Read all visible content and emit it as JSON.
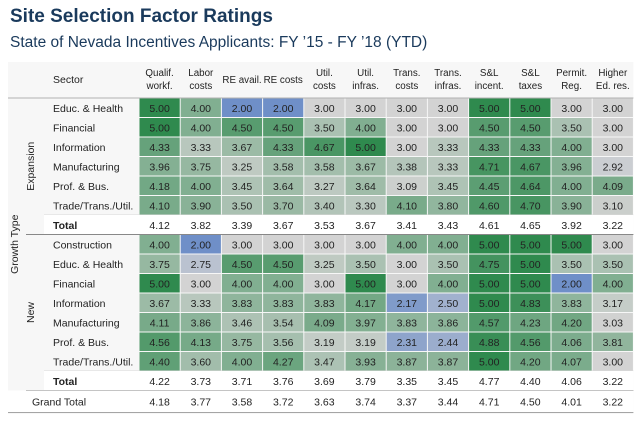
{
  "title": "Site Selection Factor Ratings",
  "subtitle": "State of Nevada Incentives Applicants:  FY ’15 - FY ’18 (YTD)",
  "chart_data": {
    "type": "heatmap",
    "row_axis_label": "Growth Type",
    "sector_header": "Sector",
    "columns": [
      [
        "Qualif.",
        "workf."
      ],
      [
        "Labor",
        "costs"
      ],
      [
        "RE avail."
      ],
      [
        "RE costs"
      ],
      [
        "Util.",
        "costs"
      ],
      [
        "Util.",
        "infras."
      ],
      [
        "Trans.",
        "costs"
      ],
      [
        "Trans.",
        "infras."
      ],
      [
        "S&L",
        "incent."
      ],
      [
        "S&L",
        "taxes"
      ],
      [
        "Permit.",
        "Reg."
      ],
      [
        "Higher",
        "Ed. res."
      ]
    ],
    "groups": [
      {
        "name": "Expansion",
        "rows": [
          {
            "sector": "Educ. & Health",
            "values": [
              "5.00",
              "4.00",
              "2.00",
              "2.00",
              "3.00",
              "3.00",
              "3.00",
              "3.00",
              "5.00",
              "5.00",
              "3.00",
              "3.00"
            ]
          },
          {
            "sector": "Financial",
            "values": [
              "5.00",
              "4.00",
              "4.50",
              "4.50",
              "3.50",
              "4.00",
              "3.00",
              "3.00",
              "4.50",
              "4.50",
              "3.50",
              "3.00"
            ]
          },
          {
            "sector": "Information",
            "values": [
              "4.33",
              "3.33",
              "3.67",
              "4.33",
              "4.67",
              "5.00",
              "3.00",
              "3.33",
              "4.33",
              "4.33",
              "4.00",
              "3.00"
            ]
          },
          {
            "sector": "Manufacturing",
            "values": [
              "3.96",
              "3.75",
              "3.25",
              "3.58",
              "3.58",
              "3.67",
              "3.38",
              "3.33",
              "4.71",
              "4.67",
              "3.96",
              "2.92"
            ]
          },
          {
            "sector": "Prof. & Bus.",
            "values": [
              "4.18",
              "4.00",
              "3.45",
              "3.64",
              "3.27",
              "3.64",
              "3.09",
              "3.45",
              "4.45",
              "4.64",
              "4.00",
              "4.09"
            ]
          },
          {
            "sector": "Trade/Trans./Util.",
            "values": [
              "4.10",
              "3.90",
              "3.50",
              "3.70",
              "3.40",
              "3.30",
              "4.10",
              "3.80",
              "4.60",
              "4.70",
              "3.90",
              "3.10"
            ]
          }
        ],
        "total": {
          "label": "Total",
          "values": [
            "4.12",
            "3.82",
            "3.39",
            "3.67",
            "3.53",
            "3.67",
            "3.41",
            "3.43",
            "4.61",
            "4.65",
            "3.92",
            "3.22"
          ]
        }
      },
      {
        "name": "New",
        "rows": [
          {
            "sector": "Construction",
            "values": [
              "4.00",
              "2.00",
              "3.00",
              "3.00",
              "3.00",
              "3.00",
              "4.00",
              "4.00",
              "5.00",
              "5.00",
              "5.00",
              "3.00"
            ]
          },
          {
            "sector": "Educ. & Health",
            "values": [
              "3.75",
              "2.75",
              "4.50",
              "4.50",
              "3.25",
              "3.50",
              "3.00",
              "3.50",
              "4.75",
              "5.00",
              "3.50",
              "3.50"
            ]
          },
          {
            "sector": "Financial",
            "values": [
              "5.00",
              "3.00",
              "4.00",
              "4.00",
              "3.00",
              "5.00",
              "3.00",
              "4.00",
              "5.00",
              "5.00",
              "2.00",
              "4.00"
            ]
          },
          {
            "sector": "Information",
            "values": [
              "3.67",
              "3.33",
              "3.83",
              "3.83",
              "3.83",
              "4.17",
              "2.17",
              "2.50",
              "5.00",
              "4.83",
              "3.83",
              "3.17"
            ]
          },
          {
            "sector": "Manufacturing",
            "values": [
              "4.11",
              "3.86",
              "3.46",
              "3.54",
              "4.09",
              "3.97",
              "3.83",
              "3.86",
              "4.57",
              "4.23",
              "4.20",
              "3.03"
            ]
          },
          {
            "sector": "Prof. & Bus.",
            "values": [
              "4.56",
              "4.13",
              "3.75",
              "3.56",
              "3.19",
              "3.19",
              "2.31",
              "2.44",
              "4.88",
              "4.56",
              "4.06",
              "3.81"
            ]
          },
          {
            "sector": "Trade/Trans./Util.",
            "values": [
              "4.40",
              "3.60",
              "4.00",
              "4.27",
              "3.47",
              "3.93",
              "3.87",
              "3.87",
              "5.00",
              "4.20",
              "4.07",
              "3.00"
            ]
          }
        ],
        "total": {
          "label": "Total",
          "values": [
            "4.22",
            "3.73",
            "3.71",
            "3.76",
            "3.69",
            "3.79",
            "3.35",
            "3.45",
            "4.77",
            "4.40",
            "4.06",
            "3.22"
          ]
        }
      }
    ],
    "grand_total": {
      "label": "Grand Total",
      "values": [
        "4.18",
        "3.77",
        "3.58",
        "3.72",
        "3.63",
        "3.74",
        "3.37",
        "3.44",
        "4.71",
        "4.50",
        "4.01",
        "3.22"
      ]
    },
    "color_scale": {
      "low": "#6f8fc8",
      "mid": "#d3d3d3",
      "high": "#2f8a4e",
      "domain": [
        2,
        3,
        5
      ]
    }
  }
}
